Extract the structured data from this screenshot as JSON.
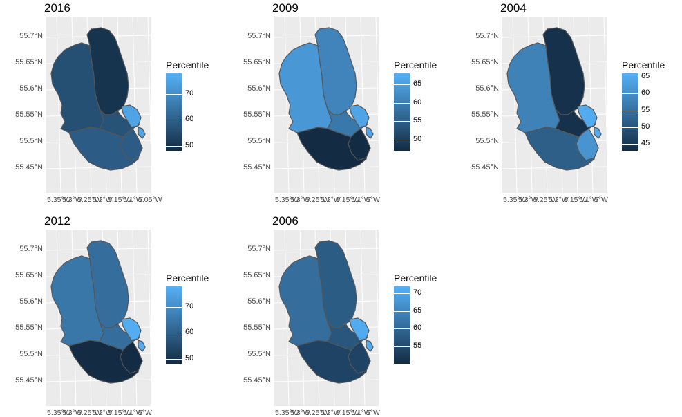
{
  "chart_data": [
    {
      "type": "choropleth",
      "title": "2016",
      "legend_title": "Percentile",
      "legend_ticks": [
        50,
        60,
        70
      ],
      "range": [
        48,
        78
      ],
      "y_ticks": [
        "55.7°N",
        "55.65°N",
        "55.6°N",
        "55.55°N",
        "55.5°N",
        "55.45°N"
      ],
      "x_ticks": [
        "5.35°W",
        "5.3°W",
        "5.25°W",
        "5.2°W",
        "5.15°W",
        "5.1°W",
        "5.05°W"
      ],
      "regions": {
        "north": 50,
        "west": 56,
        "center_east": 57,
        "south": 59,
        "bay": 75
      }
    },
    {
      "type": "choropleth",
      "title": "2009",
      "legend_title": "Percentile",
      "legend_ticks": [
        50,
        55,
        60,
        65
      ],
      "range": [
        47,
        68
      ],
      "y_ticks": [
        "55.7°N",
        "55.65°N",
        "55.6°N",
        "55.55°N",
        "55.5°N",
        "55.45°N"
      ],
      "x_ticks": [
        "5.35°W",
        "5.3°W",
        "5.25°W",
        "5.2°W",
        "5.15°W",
        "5.1°W",
        "5°W"
      ],
      "regions": {
        "north": 61,
        "west": 64,
        "center_east": 59,
        "south": 47,
        "bay": 66
      }
    },
    {
      "type": "choropleth",
      "title": "2004",
      "legend_title": "Percentile",
      "legend_ticks": [
        45,
        50,
        55,
        60,
        65
      ],
      "range": [
        43,
        66
      ],
      "y_ticks": [
        "55.7°N",
        "55.65°N",
        "55.6°N",
        "55.55°N",
        "55.5°N",
        "55.45°N"
      ],
      "x_ticks": [
        "5.35°W",
        "5.3°W",
        "5.25°W",
        "5.2°W",
        "5.15°W",
        "5.1°W",
        "5°W"
      ],
      "regions": {
        "north": 44,
        "west": 58,
        "center_east": 44,
        "south": 52,
        "bay": 65,
        "bay_south": 61
      }
    },
    {
      "type": "choropleth",
      "title": "2012",
      "legend_title": "Percentile",
      "legend_ticks": [
        50,
        60,
        70
      ],
      "range": [
        48,
        78
      ],
      "y_ticks": [
        "55.7°N",
        "55.65°N",
        "55.6°N",
        "55.55°N",
        "55.5°N",
        "55.45°N"
      ],
      "x_ticks": [
        "5.35°W",
        "5.3°W",
        "5.25°W",
        "5.2°W",
        "5.15°W",
        "5.1°W",
        "5°W"
      ],
      "regions": {
        "north": 63,
        "west": 65,
        "center_east": 63,
        "south": 48,
        "bay": 77
      }
    },
    {
      "type": "choropleth",
      "title": "2006",
      "legend_title": "Percentile",
      "legend_ticks": [
        55,
        60,
        65,
        70
      ],
      "range": [
        50,
        72
      ],
      "y_ticks": [
        "55.7°N",
        "55.65°N",
        "55.6°N",
        "55.55°N",
        "55.5°N",
        "55.45°N"
      ],
      "x_ticks": [
        "5.35°W",
        "5.3°W",
        "5.25°W",
        "5.2°W",
        "5.15°W",
        "5.1°W",
        "5°W"
      ],
      "regions": {
        "north": 58,
        "west": 61,
        "center_east": 57,
        "south": 54,
        "bay": 71
      }
    }
  ]
}
